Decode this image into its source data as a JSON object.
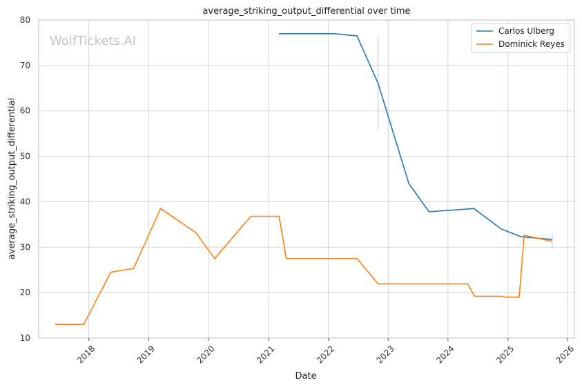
{
  "watermark": "WolfTickets.AI",
  "chart_data": {
    "type": "line",
    "title": "average_striking_output_differential over time",
    "xlabel": "Date",
    "ylabel": "average_striking_output_differential",
    "xlim": [
      "2017-03-01",
      "2026-02-10"
    ],
    "ylim": [
      10,
      80
    ],
    "xticks": [
      "2018",
      "2019",
      "2020",
      "2021",
      "2022",
      "2023",
      "2024",
      "2025",
      "2026"
    ],
    "yticks": [
      10,
      20,
      30,
      40,
      50,
      60,
      70,
      80
    ],
    "grid": true,
    "legend_position": "top-right",
    "series": [
      {
        "name": "Carlos Ulberg",
        "color": "#1f77b4",
        "x": [
          "2021-03-06",
          "2022-02-05",
          "2022-06-25",
          "2022-11-01",
          "2023-05-07",
          "2023-09-07",
          "2024-06-07",
          "2024-11-20",
          "2025-03-20",
          "2025-09-28"
        ],
        "y": [
          77.0,
          77.0,
          76.5,
          66.0,
          44.0,
          37.8,
          38.5,
          34.0,
          32.3,
          31.7
        ]
      },
      {
        "name": "Dominick Reyes",
        "color": "#ff7f0e",
        "x": [
          "2017-06-10",
          "2017-12-01",
          "2018-05-15",
          "2018-10-01",
          "2019-03-15",
          "2019-10-15",
          "2020-02-08",
          "2020-09-15",
          "2021-03-06",
          "2021-04-20",
          "2022-06-25",
          "2022-11-01",
          "2024-05-01",
          "2024-06-10",
          "2024-11-20",
          "2024-12-10",
          "2025-03-10",
          "2025-04-10",
          "2025-09-28"
        ],
        "y": [
          13.0,
          13.0,
          24.5,
          25.3,
          38.5,
          33.2,
          27.5,
          36.8,
          36.8,
          27.5,
          27.5,
          21.9,
          21.9,
          19.2,
          19.2,
          19.0,
          19.0,
          32.6,
          31.3
        ]
      }
    ],
    "vertical_markers": [
      {
        "x": "2022-11-01",
        "y_range": [
          55.8,
          76.5
        ],
        "color": "#1f77b4"
      },
      {
        "x": "2025-09-28",
        "y_range": [
          29.5,
          33.0
        ],
        "color": "#1f77b4"
      }
    ]
  }
}
